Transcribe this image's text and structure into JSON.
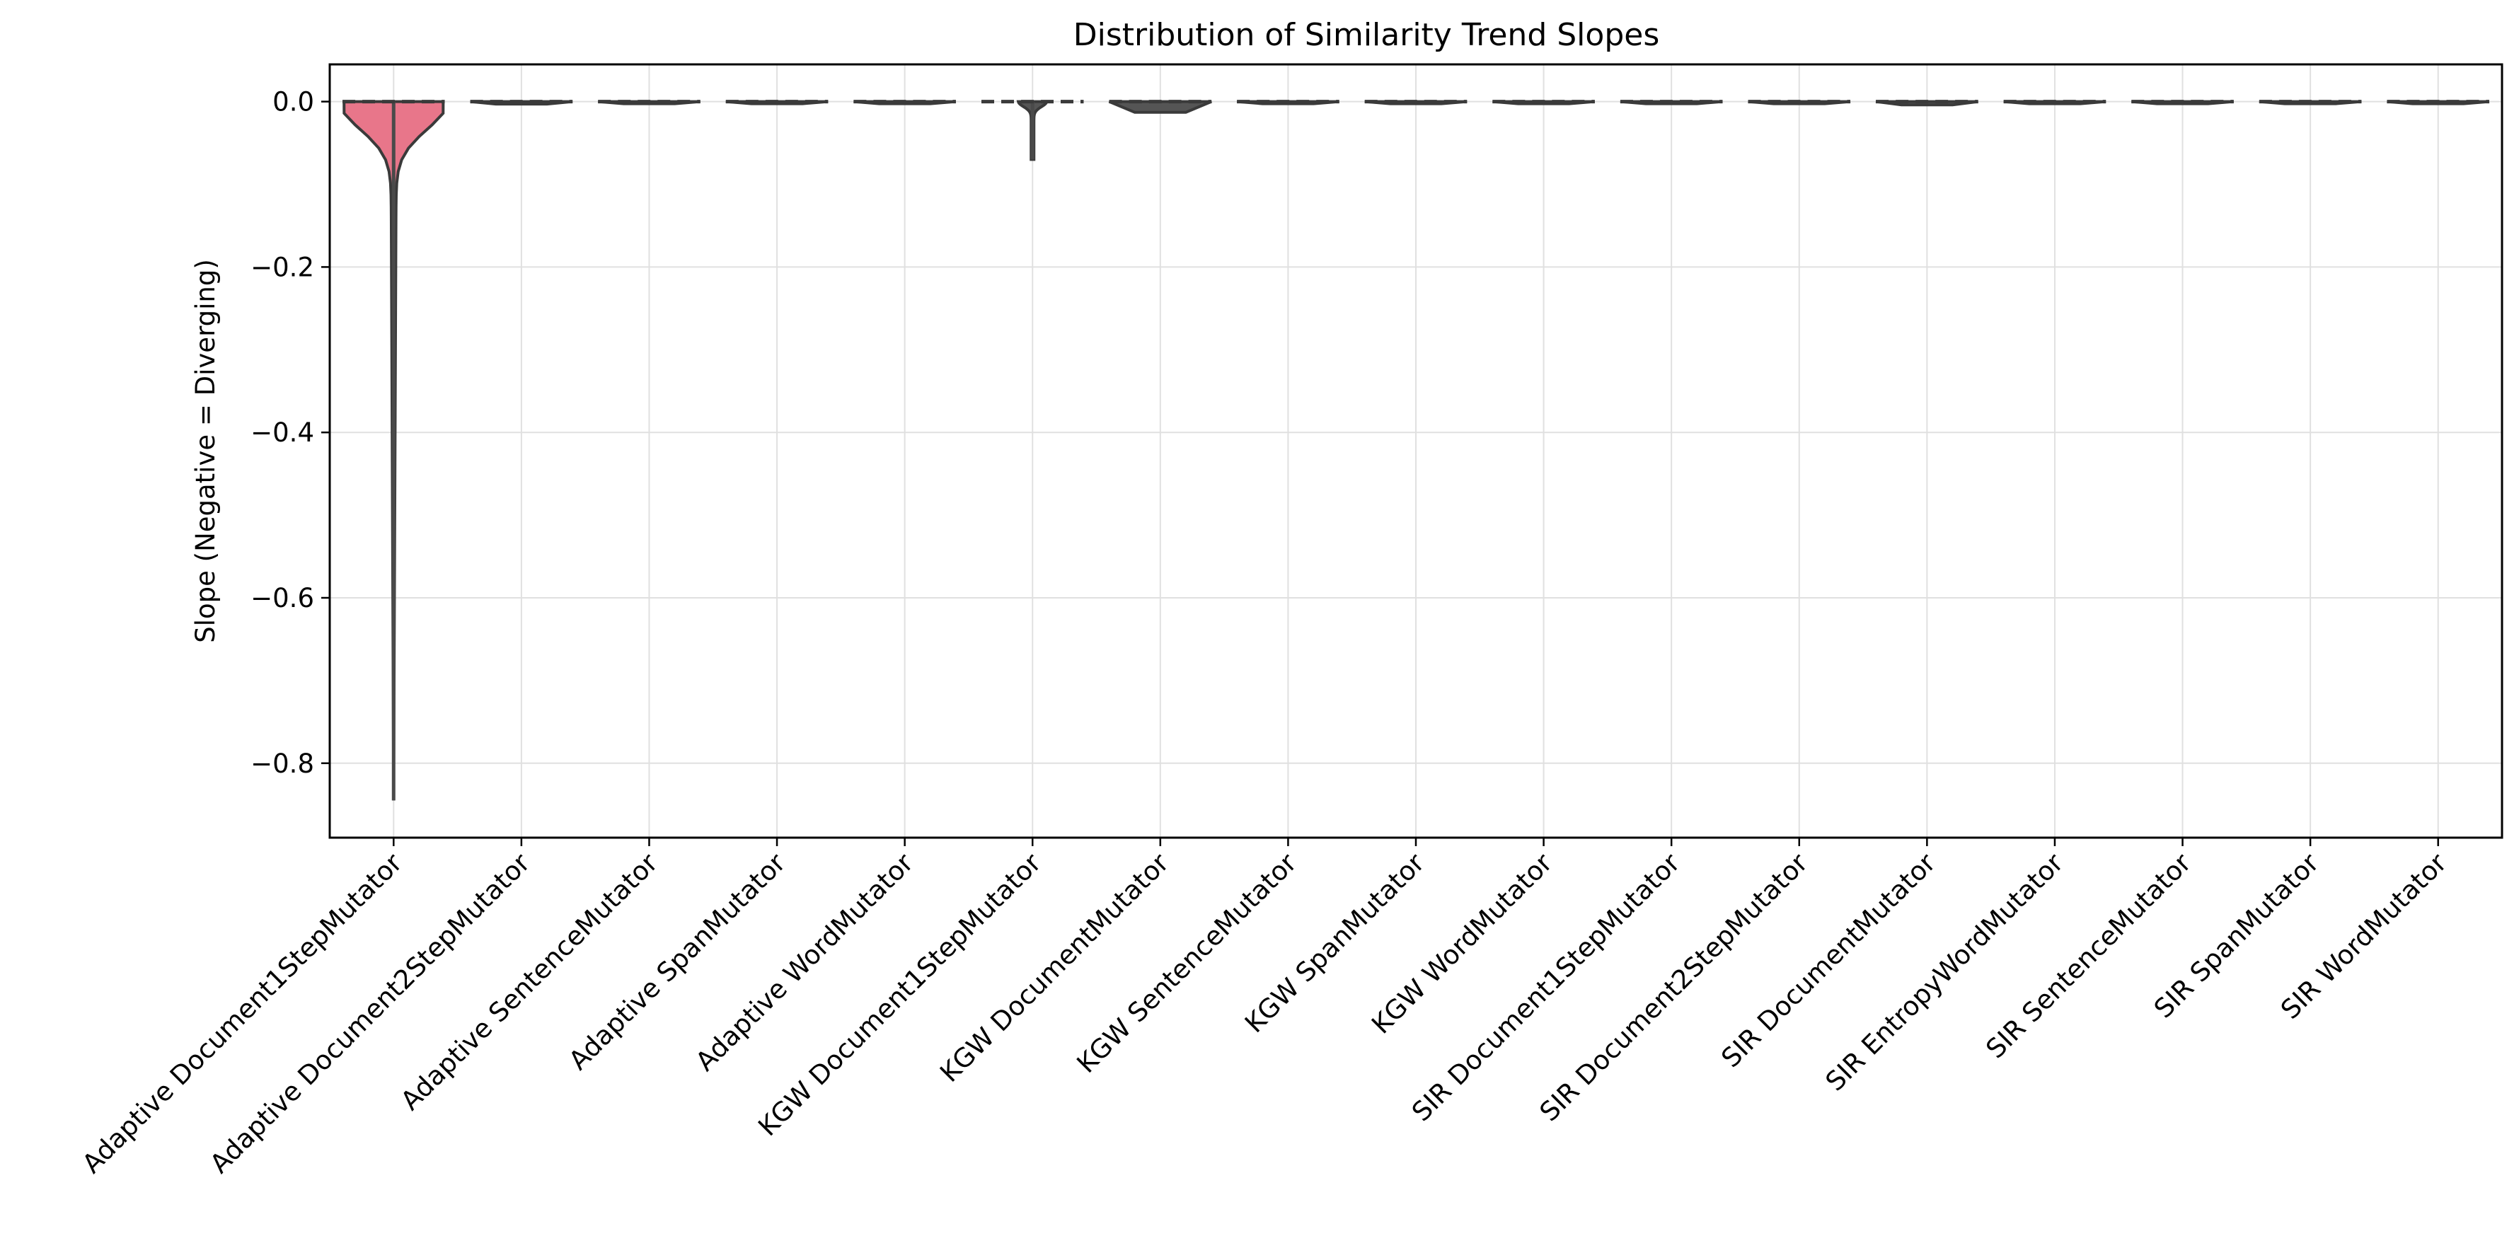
{
  "chart_data": {
    "type": "violin",
    "title": "Distribution of Similarity Trend Slopes",
    "xlabel": "",
    "ylabel": "Slope (Negative = Diverging)",
    "ylim": [
      -0.89,
      0.045
    ],
    "yticks": [
      0.0,
      -0.2,
      -0.4,
      -0.6,
      -0.8
    ],
    "ytick_labels": [
      "0.0",
      "−0.2",
      "−0.4",
      "−0.6",
      "−0.8"
    ],
    "grid": true,
    "categories": [
      "Adaptive Document1StepMutator",
      "Adaptive Document2StepMutator",
      "Adaptive SentenceMutator",
      "Adaptive SpanMutator",
      "Adaptive WordMutator",
      "KGW Document1StepMutator",
      "KGW DocumentMutator",
      "KGW SentenceMutator",
      "KGW SpanMutator",
      "KGW WordMutator",
      "SIR Document1StepMutator",
      "SIR Document2StepMutator",
      "SIR DocumentMutator",
      "SIR EntropyWordMutator",
      "SIR SentenceMutator",
      "SIR SpanMutator",
      "SIR WordMutator"
    ],
    "series": [
      {
        "values_min": [
          -0.845,
          -0.003,
          -0.001,
          -0.001,
          -0.001,
          -0.07,
          -0.013,
          -0.001,
          -0.001,
          -0.001,
          -0.001,
          -0.002,
          -0.004,
          -0.001,
          -0.002,
          -0.001,
          -0.001
        ],
        "values_max": [
          0.0,
          0.0,
          0.0,
          0.0,
          0.0,
          0.0,
          0.0,
          0.0,
          0.0,
          0.0,
          0.0,
          0.0,
          0.0,
          0.0,
          0.0,
          0.0,
          0.0
        ],
        "medians": [
          -0.01,
          -0.001,
          0.0,
          0.0,
          0.0,
          -0.001,
          -0.001,
          0.0,
          0.0,
          0.0,
          0.0,
          -0.001,
          -0.001,
          0.0,
          -0.001,
          0.0,
          0.0
        ]
      }
    ],
    "colors": {
      "violin_fill": "#e8768a",
      "violin_edge": "#3a3a3a",
      "grid": "#e0e0e0",
      "axis": "#000000"
    }
  }
}
